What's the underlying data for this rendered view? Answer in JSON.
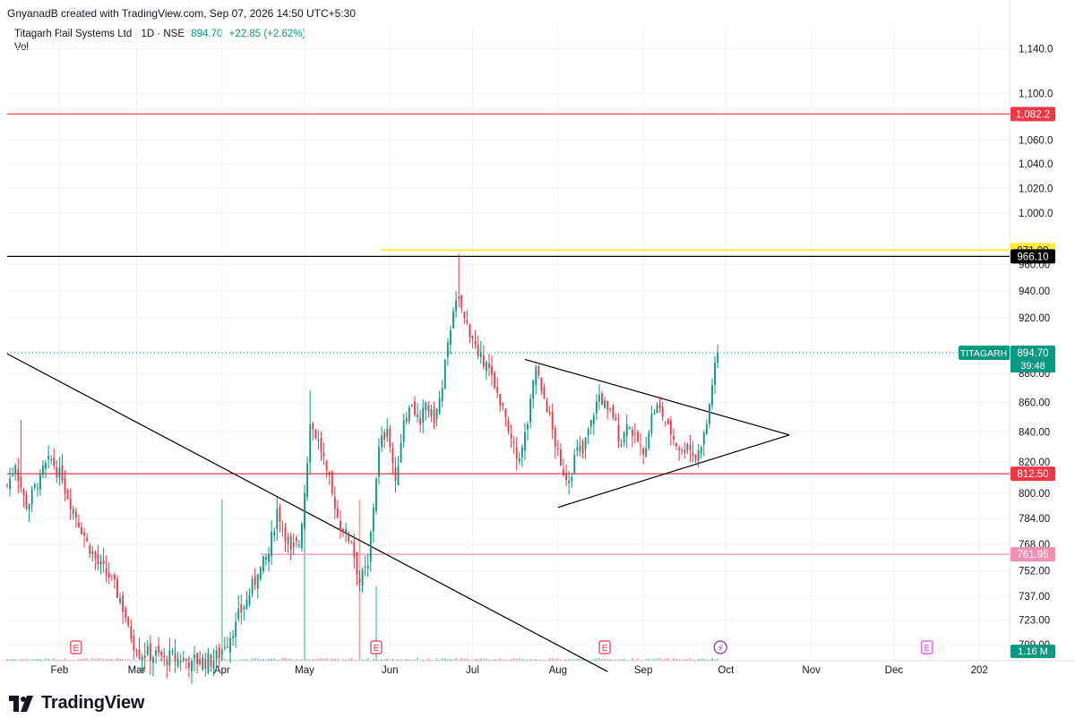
{
  "header": {
    "creator": "GnyanadB created with TradingView.com, Sep 07, 2026 14:50 UTC+5:30",
    "symbol": "Titagarh Rail Systems Ltd · 1D · NSE",
    "price": "894.70",
    "change": "+22.85 (+2.62%)",
    "vol_label": "Vol"
  },
  "brand": {
    "name": "TradingView"
  },
  "colors": {
    "up": "#089981",
    "down": "#f23645",
    "vol_up": "#8ccfc3",
    "vol_down": "#f5a3ab",
    "resistance_red": "#f23645",
    "yellow": "#ffeb3b",
    "pink": "#f48fb1",
    "teal": "#089981"
  },
  "chart_data": {
    "type": "candlestick",
    "instrument": "Titagarh Rail Systems Ltd",
    "timeframe": "1D",
    "exchange": "NSE",
    "y_scale": "log",
    "ylim": [
      700,
      1160
    ],
    "y_ticks": [
      "1,140.0",
      "1,100.0",
      "1,060.0",
      "1,040.0",
      "1,020.0",
      "1,000.0",
      "960.00",
      "940.00",
      "920.00",
      "880.00",
      "860.00",
      "840.00",
      "820.00",
      "800.00",
      "784.00",
      "768.00",
      "752.00",
      "737.00",
      "723.00",
      "709.00"
    ],
    "x_ticks": [
      "Feb",
      "Mar",
      "Apr",
      "May",
      "Jun",
      "Jul",
      "Aug",
      "Sep",
      "Oct",
      "Nov",
      "Dec",
      "202"
    ],
    "x_range_days": [
      13,
      377
    ],
    "tick_days": [
      32,
      60,
      91,
      121,
      152,
      182,
      213,
      244,
      274,
      305,
      335,
      366
    ],
    "anchors": [
      {
        "day": 13,
        "close": 805
      },
      {
        "day": 16,
        "close": 818
      },
      {
        "day": 20,
        "close": 790
      },
      {
        "day": 25,
        "close": 812
      },
      {
        "day": 29,
        "close": 822
      },
      {
        "day": 33,
        "close": 808
      },
      {
        "day": 37,
        "close": 790
      },
      {
        "day": 42,
        "close": 770
      },
      {
        "day": 46,
        "close": 756
      },
      {
        "day": 50,
        "close": 748
      },
      {
        "day": 54,
        "close": 736
      },
      {
        "day": 57,
        "close": 720
      },
      {
        "day": 60,
        "close": 705
      },
      {
        "day": 70,
        "close": 702
      },
      {
        "day": 80,
        "close": 700
      },
      {
        "day": 88,
        "close": 700
      },
      {
        "day": 92,
        "close": 708
      },
      {
        "day": 96,
        "close": 722
      },
      {
        "day": 100,
        "close": 735
      },
      {
        "day": 104,
        "close": 750
      },
      {
        "day": 108,
        "close": 762
      },
      {
        "day": 111,
        "close": 790
      },
      {
        "day": 113,
        "close": 780
      },
      {
        "day": 116,
        "close": 765
      },
      {
        "day": 119,
        "close": 768
      },
      {
        "day": 121,
        "close": 800
      },
      {
        "day": 123,
        "close": 845
      },
      {
        "day": 126,
        "close": 835
      },
      {
        "day": 129,
        "close": 815
      },
      {
        "day": 132,
        "close": 790
      },
      {
        "day": 135,
        "close": 775
      },
      {
        "day": 138,
        "close": 770
      },
      {
        "day": 141,
        "close": 745
      },
      {
        "day": 144,
        "close": 755
      },
      {
        "day": 148,
        "close": 830
      },
      {
        "day": 151,
        "close": 842
      },
      {
        "day": 154,
        "close": 808
      },
      {
        "day": 157,
        "close": 848
      },
      {
        "day": 160,
        "close": 858
      },
      {
        "day": 163,
        "close": 845
      },
      {
        "day": 165,
        "close": 860
      },
      {
        "day": 168,
        "close": 846
      },
      {
        "day": 171,
        "close": 870
      },
      {
        "day": 173,
        "close": 902
      },
      {
        "day": 175,
        "close": 925
      },
      {
        "day": 177,
        "close": 934
      },
      {
        "day": 179,
        "close": 920
      },
      {
        "day": 182,
        "close": 905
      },
      {
        "day": 184,
        "close": 892
      },
      {
        "day": 187,
        "close": 888
      },
      {
        "day": 190,
        "close": 870
      },
      {
        "day": 193,
        "close": 858
      },
      {
        "day": 195,
        "close": 840
      },
      {
        "day": 198,
        "close": 822
      },
      {
        "day": 200,
        "close": 830
      },
      {
        "day": 202,
        "close": 845
      },
      {
        "day": 205,
        "close": 885
      },
      {
        "day": 207,
        "close": 868
      },
      {
        "day": 210,
        "close": 852
      },
      {
        "day": 212,
        "close": 830
      },
      {
        "day": 214,
        "close": 818
      },
      {
        "day": 217,
        "close": 808
      },
      {
        "day": 220,
        "close": 830
      },
      {
        "day": 222,
        "close": 826
      },
      {
        "day": 225,
        "close": 848
      },
      {
        "day": 228,
        "close": 865
      },
      {
        "day": 231,
        "close": 855
      },
      {
        "day": 233,
        "close": 850
      },
      {
        "day": 236,
        "close": 832
      },
      {
        "day": 238,
        "close": 845
      },
      {
        "day": 241,
        "close": 838
      },
      {
        "day": 244,
        "close": 825
      },
      {
        "day": 247,
        "close": 852
      },
      {
        "day": 249,
        "close": 858
      },
      {
        "day": 251,
        "close": 850
      },
      {
        "day": 253,
        "close": 845
      },
      {
        "day": 255,
        "close": 835
      },
      {
        "day": 258,
        "close": 828
      },
      {
        "day": 260,
        "close": 832
      },
      {
        "day": 263,
        "close": 822
      },
      {
        "day": 265,
        "close": 830
      },
      {
        "day": 267,
        "close": 845
      },
      {
        "day": 269,
        "close": 872
      },
      {
        "day": 271,
        "close": 894.7
      }
    ],
    "hlines": [
      {
        "price": 1082.2,
        "label": "1,082.2",
        "color": "#f23645",
        "from_day": 13
      },
      {
        "price": 971.0,
        "label": "971.00",
        "color": "#ffeb3b",
        "from_day": 149
      },
      {
        "price": 966.1,
        "label": "966.10",
        "color": "#000000",
        "from_day": 13
      },
      {
        "price": 812.5,
        "label": "812.50",
        "color": "#f23645",
        "from_day": 13
      },
      {
        "price": 761.95,
        "label": "761.95",
        "color": "#f48fb1",
        "from_day": 105
      }
    ],
    "trendlines": [
      {
        "from": [
          13,
          894
        ],
        "to": [
          231,
          694
        ],
        "color": "#000000"
      },
      {
        "from": [
          201,
          890
        ],
        "to": [
          297,
          838
        ],
        "color": "#000000"
      },
      {
        "from": [
          213,
          791
        ],
        "to": [
          297,
          838
        ],
        "color": "#000000"
      }
    ],
    "current_price": {
      "label": "TITAGARH",
      "value": "894.70",
      "countdown": "39:48",
      "price": 894.7
    },
    "volume_label": "1.16 M",
    "event_markers": [
      {
        "day": 38,
        "type": "earnings",
        "glyph": "E"
      },
      {
        "day": 147,
        "type": "earnings",
        "glyph": "E"
      },
      {
        "day": 230,
        "type": "earnings",
        "glyph": "E"
      },
      {
        "day": 272,
        "type": "dividend",
        "glyph": "⚡"
      },
      {
        "day": 347,
        "type": "earnings-upcoming",
        "glyph": "E"
      }
    ]
  }
}
